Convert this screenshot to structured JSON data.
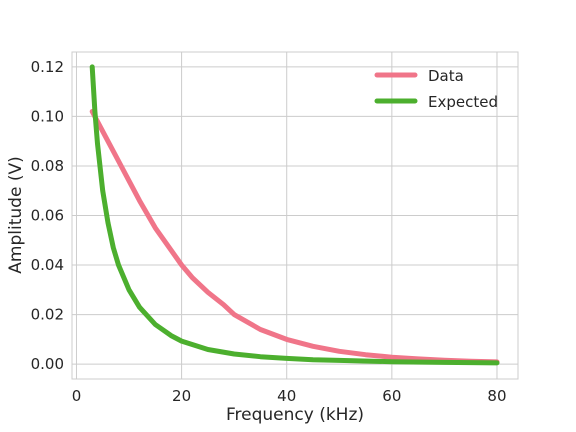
{
  "chart_data": {
    "type": "line",
    "title": "",
    "xlabel": "Frequency (kHz)",
    "ylabel": "Amplitude (V)",
    "xlim": [
      -0.85,
      84
    ],
    "ylim": [
      -0.006,
      0.126
    ],
    "xticks": [
      0,
      20,
      40,
      60,
      80
    ],
    "yticks": [
      0.0,
      0.02,
      0.04,
      0.06,
      0.08,
      0.1,
      0.12
    ],
    "xtick_labels": [
      "0",
      "20",
      "40",
      "60",
      "80"
    ],
    "ytick_labels": [
      "0.00",
      "0.02",
      "0.04",
      "0.06",
      "0.08",
      "0.10",
      "0.12"
    ],
    "grid": true,
    "legend_position": "top-right",
    "series": [
      {
        "name": "Data",
        "color": "#f07589",
        "x": [
          3,
          5,
          8,
          10,
          12,
          15,
          18,
          20,
          22,
          25,
          28,
          30,
          35,
          40,
          45,
          50,
          55,
          60,
          65,
          70,
          75,
          80
        ],
        "y": [
          0.102,
          0.094,
          0.082,
          0.074,
          0.066,
          0.055,
          0.046,
          0.04,
          0.035,
          0.029,
          0.024,
          0.02,
          0.014,
          0.01,
          0.0072,
          0.0052,
          0.0038,
          0.0028,
          0.0021,
          0.0016,
          0.0012,
          0.0009
        ]
      },
      {
        "name": "Expected",
        "color": "#4caf2e",
        "x": [
          3,
          3.5,
          4,
          5,
          6,
          7,
          8,
          10,
          12,
          15,
          18,
          20,
          25,
          30,
          35,
          40,
          45,
          50,
          60,
          70,
          80
        ],
        "y": [
          0.12,
          0.102,
          0.089,
          0.07,
          0.057,
          0.047,
          0.04,
          0.03,
          0.023,
          0.016,
          0.0115,
          0.0093,
          0.0059,
          0.0041,
          0.003,
          0.0023,
          0.0018,
          0.0015,
          0.001,
          0.0007,
          0.0005
        ]
      }
    ]
  }
}
